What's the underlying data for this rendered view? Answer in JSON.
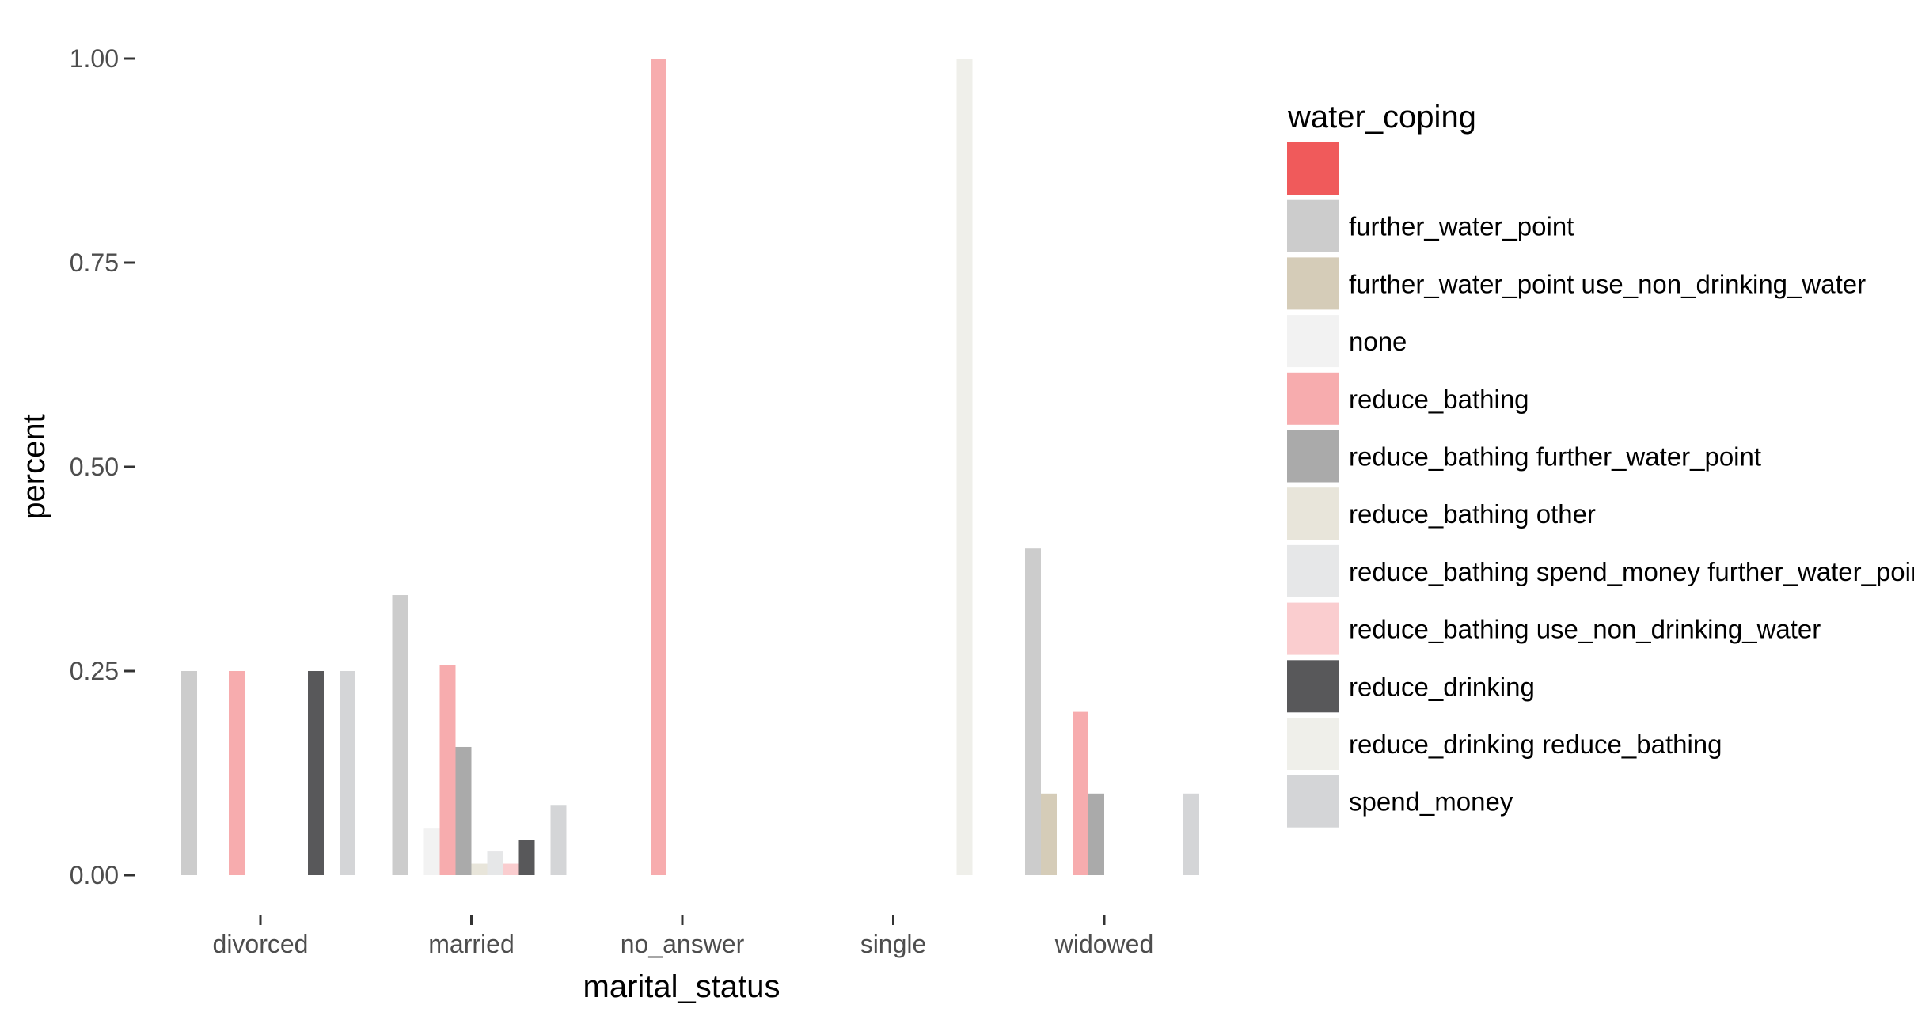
{
  "chart_data": {
    "type": "bar",
    "title": "",
    "xlabel": "marital_status",
    "ylabel": "percent",
    "ylim": [
      0,
      1.0
    ],
    "yticks": [
      "0.00",
      "0.25",
      "0.50",
      "0.75",
      "1.00"
    ],
    "ytick_values": [
      0,
      0.25,
      0.5,
      0.75,
      1.0
    ],
    "grid": false,
    "legend_position": "right",
    "legend_title": "water_coping",
    "categories": [
      "divorced",
      "married",
      "no_answer",
      "single",
      "widowed"
    ],
    "series": [
      {
        "name": "",
        "color": "#f05a5b",
        "values": [
          0,
          0,
          0,
          0,
          0
        ]
      },
      {
        "name": "further_water_point",
        "color": "#cccccc",
        "values": [
          0.25,
          0.343,
          0,
          0,
          0.4
        ]
      },
      {
        "name": "further_water_point use_non_drinking_water",
        "color": "#d5ccb8",
        "values": [
          0,
          0,
          0,
          0,
          0.1
        ]
      },
      {
        "name": "none",
        "color": "#f2f2f2",
        "values": [
          0,
          0.057,
          0,
          0,
          0
        ]
      },
      {
        "name": "reduce_bathing",
        "color": "#f7acae",
        "values": [
          0.25,
          0.257,
          1.0,
          0,
          0.2
        ]
      },
      {
        "name": "reduce_bathing further_water_point",
        "color": "#aaaaaa",
        "values": [
          0,
          0.157,
          0,
          0,
          0.1
        ]
      },
      {
        "name": "reduce_bathing other",
        "color": "#e8e5da",
        "values": [
          0,
          0.014,
          0,
          0,
          0
        ]
      },
      {
        "name": "reduce_bathing spend_money further_water_point",
        "color": "#e6e7e8",
        "values": [
          0,
          0.029,
          0,
          0,
          0
        ]
      },
      {
        "name": "reduce_bathing use_non_drinking_water",
        "color": "#facdcf",
        "values": [
          0,
          0.014,
          0,
          0,
          0
        ]
      },
      {
        "name": "reduce_drinking",
        "color": "#58585a",
        "values": [
          0.25,
          0.043,
          0,
          0,
          0
        ]
      },
      {
        "name": "reduce_drinking reduce_bathing",
        "color": "#efefea",
        "values": [
          0,
          0,
          0,
          1.0,
          0
        ]
      },
      {
        "name": "spend_money",
        "color": "#d4d5d7",
        "values": [
          0.25,
          0.086,
          0,
          0,
          0.1
        ]
      }
    ]
  }
}
